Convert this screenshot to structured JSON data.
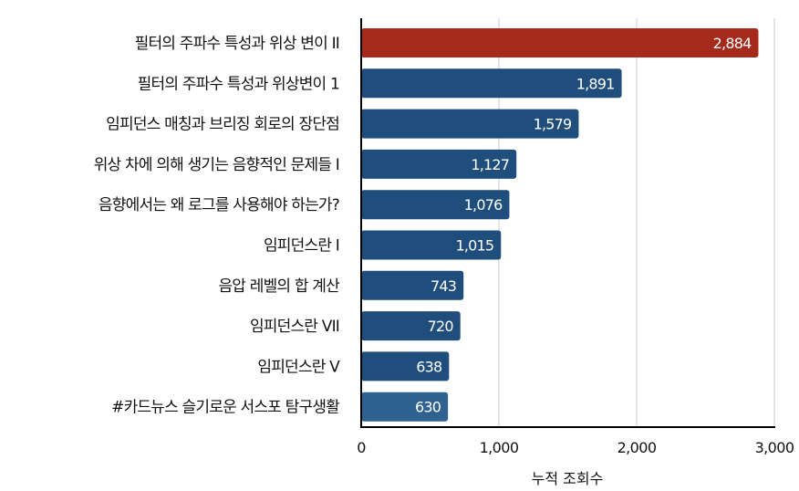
{
  "chart_data": {
    "type": "bar",
    "orientation": "horizontal",
    "categories": [
      "필터의 주파수 특성과 위상 변이 II",
      "필터의 주파수 특성과 위상변이 1",
      "임피던스 매칭과 브리징 회로의 장단점",
      "위상 차에 의해 생기는 음향적인 문제들 I",
      "음향에서는 왜 로그를 사용해야 하는가?",
      "임피던스란 I",
      "음압 레벨의 합 계산",
      "임피던스란 VII",
      "임피던스란 V",
      "#카드뉴스 슬기로운 서스포 탐구생활"
    ],
    "values": [
      2884,
      1891,
      1579,
      1127,
      1076,
      1015,
      743,
      720,
      638,
      630
    ],
    "value_labels": [
      "2,884",
      "1,891",
      "1,579",
      "1,127",
      "1,076",
      "1,015",
      "743",
      "720",
      "638",
      "630"
    ],
    "bar_colors": [
      "#a52a1c",
      "#1f4e7d",
      "#1f4e7d",
      "#1f4e7d",
      "#1f4e7d",
      "#1f4e7d",
      "#1f4e7d",
      "#1f4e7d",
      "#1f4e7d",
      "#2f6191"
    ],
    "xlabel": "누적 조회수",
    "ylabel": "",
    "xlim": [
      0,
      3000
    ],
    "xticks": [
      0,
      1000,
      2000,
      3000
    ],
    "xtick_labels": [
      "0",
      "1,000",
      "2,000",
      "3,000"
    ],
    "grid": true
  }
}
